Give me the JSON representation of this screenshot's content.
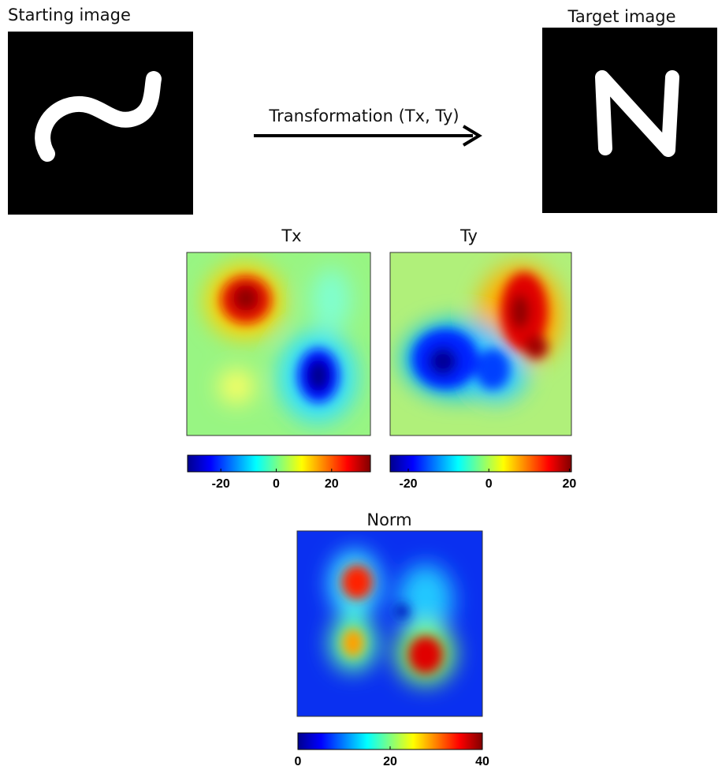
{
  "header": {
    "start_label": "Starting image",
    "target_label": "Target image",
    "transform_label": "Transformation (Tx, Ty)"
  },
  "panels": [
    {
      "title": "Tx",
      "colorbar": {
        "lim": [
          -32,
          34
        ],
        "ticks": [
          -20,
          0,
          20
        ]
      }
    },
    {
      "title": "Ty",
      "colorbar": {
        "lim": [
          -24.5,
          20.5
        ],
        "ticks": [
          -20,
          0,
          20
        ]
      }
    },
    {
      "title": "Norm",
      "colorbar": {
        "lim": [
          0,
          40
        ],
        "ticks": [
          0,
          20,
          40
        ]
      }
    }
  ]
}
